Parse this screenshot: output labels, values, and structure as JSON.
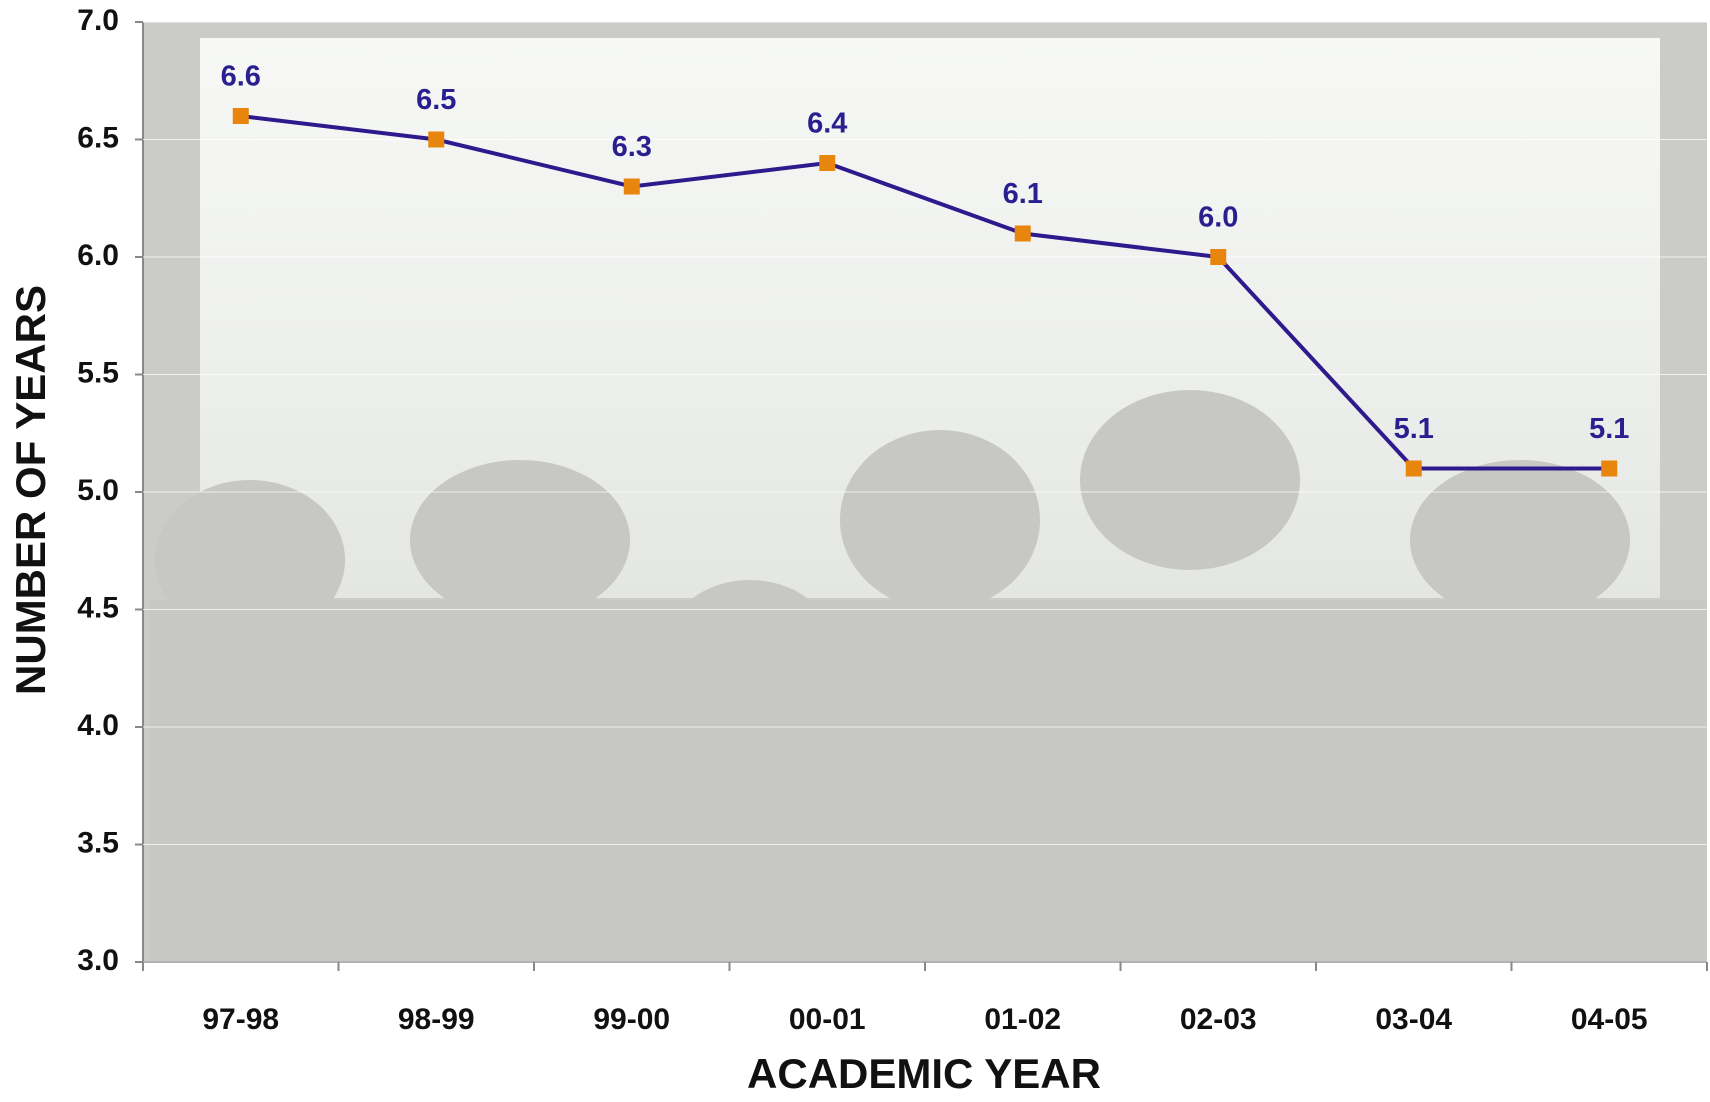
{
  "chart_data": {
    "type": "line",
    "categories": [
      "97-98",
      "98-99",
      "99-00",
      "00-01",
      "01-02",
      "02-03",
      "03-04",
      "04-05"
    ],
    "values": [
      6.6,
      6.5,
      6.3,
      6.4,
      6.1,
      6.0,
      5.1,
      5.1
    ],
    "value_labels": [
      "6.6",
      "6.5",
      "6.3",
      "6.4",
      "6.1",
      "6.0",
      "5.1",
      "5.1"
    ],
    "color": "#2e1a8c",
    "marker_color": "#e8850c",
    "xlabel": "ACADEMIC YEAR",
    "ylabel": "NUMBER OF YEARS",
    "ylim": [
      3.0,
      7.0
    ],
    "yticks": [
      {
        "value": 3,
        "label": "3.0"
      },
      3.5,
      {
        "value": 4,
        "label": "4.0"
      },
      4.5,
      {
        "value": 5,
        "label": "5.0"
      },
      5.5,
      {
        "value": 6,
        "label": "6.0"
      },
      6.5,
      {
        "value": 7,
        "label": "7.0"
      }
    ],
    "grid": true
  }
}
